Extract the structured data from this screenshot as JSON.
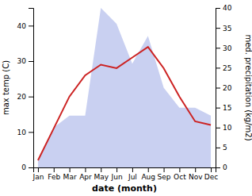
{
  "chart_data": {
    "type": "line",
    "categories": [
      "Jan",
      "Feb",
      "Mar",
      "Apr",
      "May",
      "Jun",
      "Jul",
      "Aug",
      "Sep",
      "Oct",
      "Nov",
      "Dec"
    ],
    "xlabel": "date (month)",
    "ylabel": "max temp (C)",
    "y2label": "med. precipitation (kg/m2)",
    "ylim": [
      0,
      45
    ],
    "yticks": [
      0,
      10,
      20,
      30,
      40
    ],
    "y2lim": [
      0,
      40
    ],
    "y2ticks": [
      0,
      5,
      10,
      15,
      20,
      25,
      30,
      35,
      40
    ],
    "grid": false,
    "series": [
      {
        "type": "area",
        "axis": "y2",
        "color": "#c0c8ee",
        "values": [
          2,
          10,
          13,
          13,
          40,
          36,
          26,
          33,
          20,
          15,
          15,
          13
        ]
      },
      {
        "type": "line",
        "color": "#cc2222",
        "values": [
          2,
          11,
          20,
          26,
          29,
          28,
          31,
          34,
          28,
          20,
          13,
          12
        ]
      }
    ]
  }
}
